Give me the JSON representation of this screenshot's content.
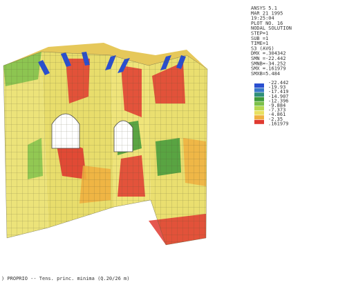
{
  "header": {
    "lines": [
      "ANSYS 5.1",
      "MAR 21 1995",
      "19:25:04",
      "PLOT NO.  16",
      "NODAL SOLUTION",
      "STEP=1",
      "SUB =1",
      "TIME=1",
      "S3          (AVG)",
      "DMX =.304342",
      "SMN =-22.442",
      "SMNB=-34.252",
      "SMX =.161979",
      "SMXB=5.484"
    ]
  },
  "legend": {
    "labels": [
      "-22.442",
      "-19.93",
      "-17.419",
      "-14.907",
      "-12.396",
      "-9.884",
      "-7.373",
      "-4.861",
      "-2.35",
      ".161979"
    ],
    "colors": [
      "#2a4fd0",
      "#3a78c8",
      "#2f8f7a",
      "#3f9a3a",
      "#7cc04a",
      "#b8d850",
      "#e8e060",
      "#f0b040",
      "#e03a30"
    ]
  },
  "footer": {
    "caption": ") PROPRIO -- Tens. princ. minima  (Q.20/26 m)"
  }
}
